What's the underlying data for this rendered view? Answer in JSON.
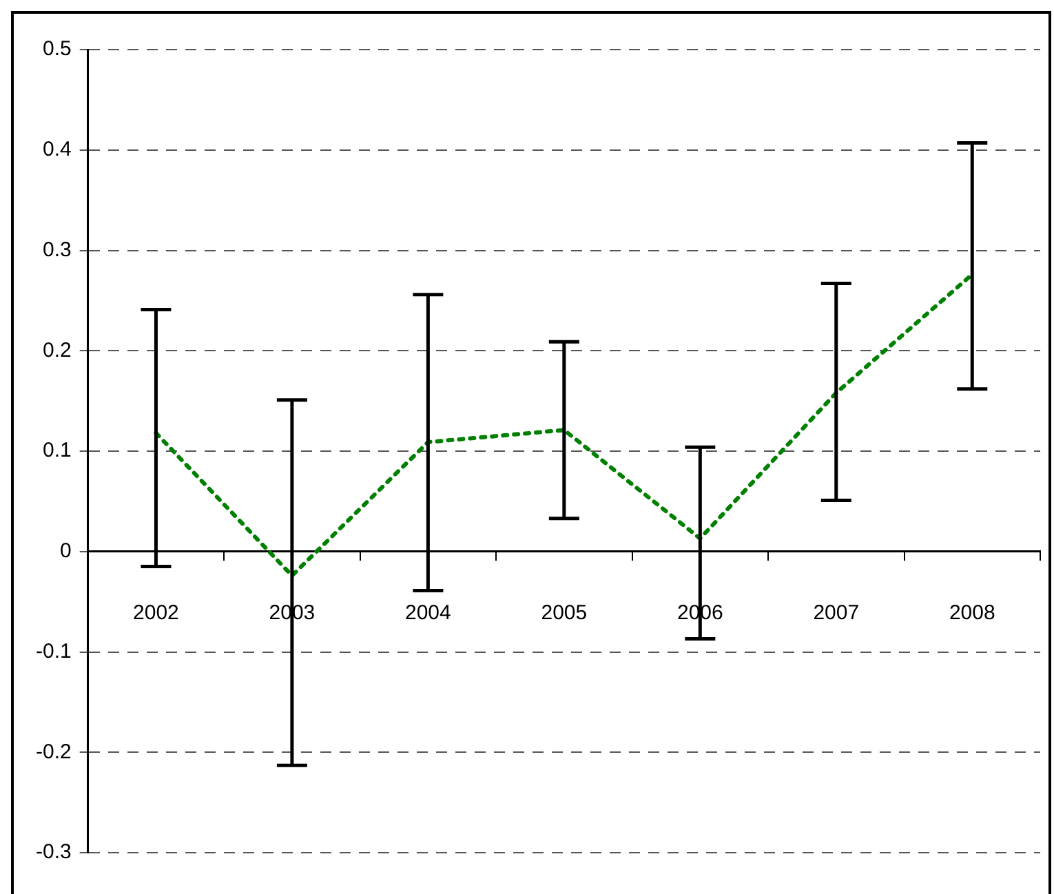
{
  "chart_data": {
    "type": "line",
    "categories": [
      "2002",
      "2003",
      "2004",
      "2005",
      "2006",
      "2007",
      "2008"
    ],
    "series": [
      {
        "color": "#008000",
        "values": [
          0.118,
          -0.024,
          0.109,
          0.121,
          0.013,
          0.158,
          0.276
        ],
        "errors": [
          [
            -0.015,
            0.241
          ],
          [
            -0.213,
            0.151
          ],
          [
            -0.039,
            0.256
          ],
          [
            0.033,
            0.209
          ],
          [
            -0.087,
            0.104
          ],
          [
            0.051,
            0.267
          ],
          [
            0.162,
            0.407
          ]
        ]
      }
    ],
    "ylim": [
      -0.3,
      0.5
    ],
    "yticks": [
      -0.3,
      -0.2,
      -0.1,
      0,
      0.1,
      0.2,
      0.3,
      0.4,
      0.5
    ],
    "grid": "y",
    "legend": false,
    "marker": "none",
    "line_style": "dotted"
  }
}
